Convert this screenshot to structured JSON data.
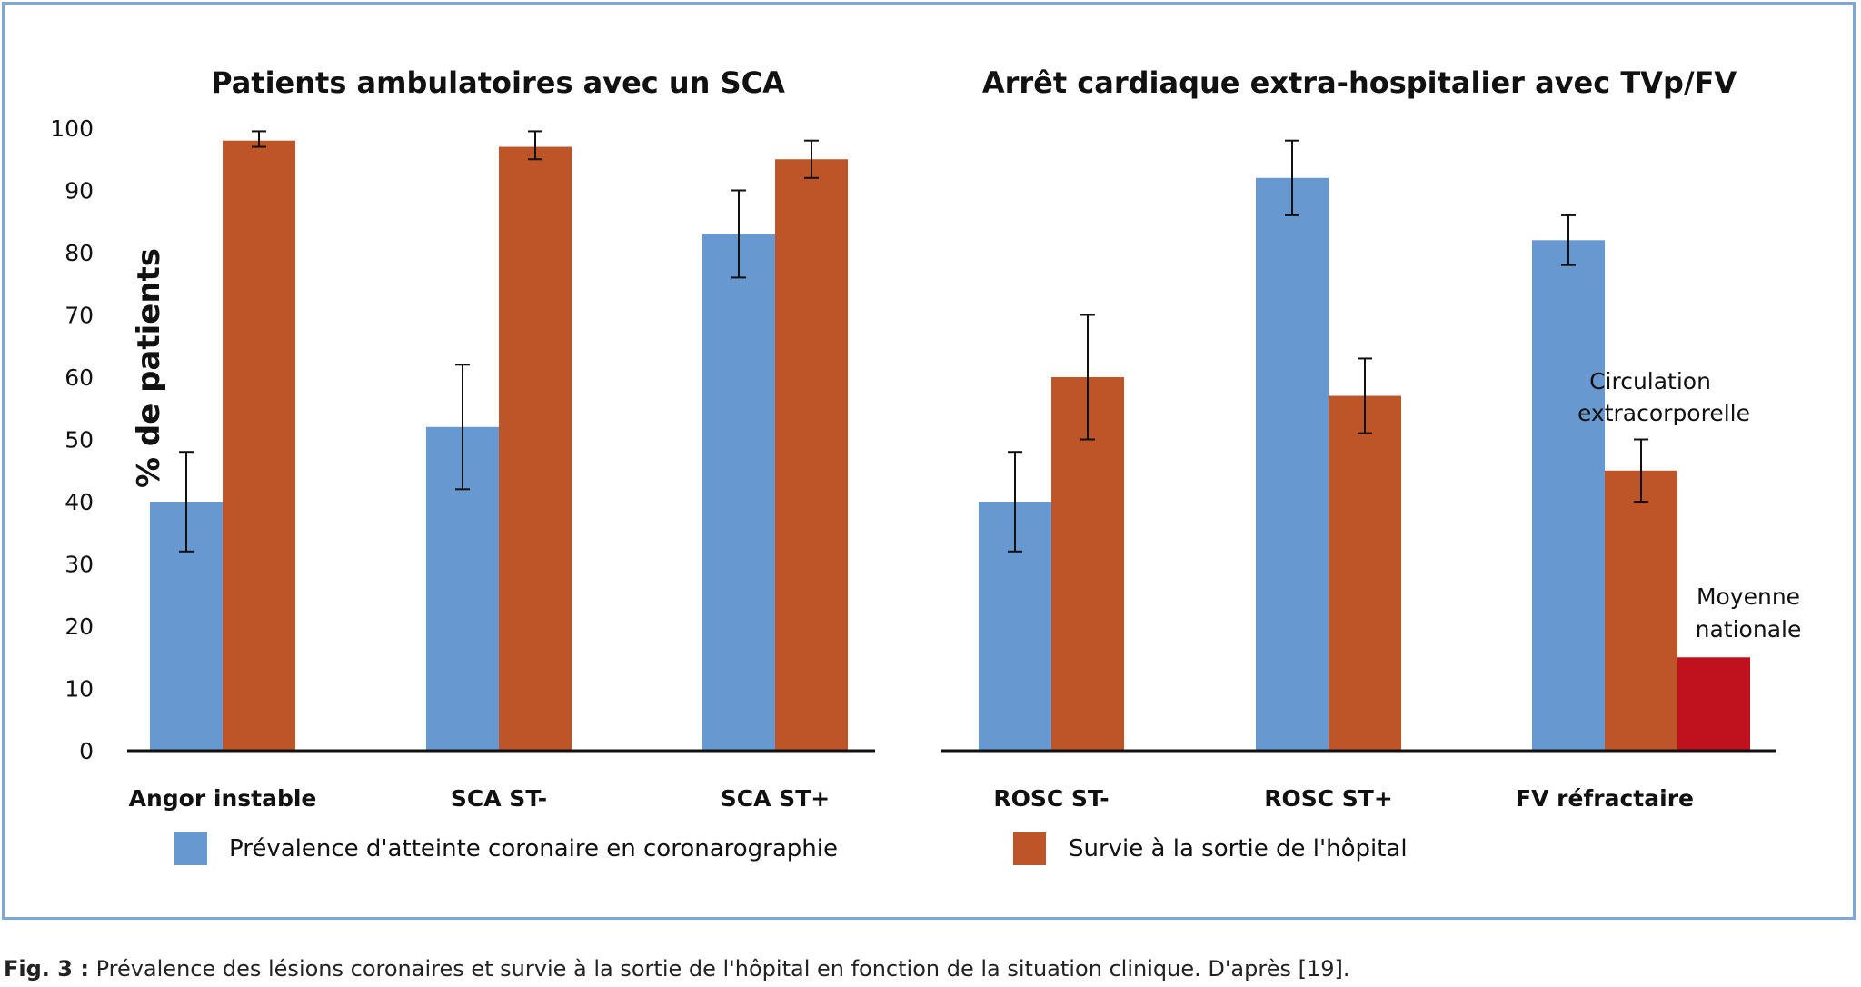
{
  "chart_data": {
    "type": "bar",
    "ylabel": "% de patients",
    "ylim": [
      0,
      100
    ],
    "y_ticks": [
      0,
      10,
      20,
      30,
      40,
      50,
      60,
      70,
      80,
      90,
      100
    ],
    "legend": {
      "placement": "bottom",
      "items": [
        {
          "label": "Prévalence d'atteinte coronaire en coronarographie",
          "color": "#6898D0"
        },
        {
          "label": "Survie à la sortie de l'hôpital",
          "color": "#BE5529"
        }
      ]
    },
    "panels": [
      {
        "title": "Patients ambulatoires avec un SCA",
        "categories": [
          "Angor instable",
          "SCA ST-",
          "SCA ST+"
        ],
        "series": [
          {
            "name": "Prévalence d'atteinte coronaire en coronarographie",
            "color": "#6898D0",
            "values": [
              40,
              52,
              83
            ],
            "error_low": [
              32,
              42,
              76
            ],
            "error_high": [
              48,
              62,
              90
            ]
          },
          {
            "name": "Survie à la sortie de l'hôpital",
            "color": "#BE5529",
            "values": [
              98,
              97,
              95
            ],
            "error_low": [
              97,
              95,
              92
            ],
            "error_high": [
              99.5,
              99.5,
              98
            ]
          }
        ]
      },
      {
        "title": "Arrêt cardiaque extra-hospitalier avec TVp/FV",
        "categories": [
          "ROSC ST-",
          "ROSC ST+",
          "FV réfractaire"
        ],
        "series": [
          {
            "name": "Prévalence d'atteinte coronaire en coronarographie",
            "color": "#6898D0",
            "values": [
              40,
              92,
              82
            ],
            "error_low": [
              32,
              86,
              78
            ],
            "error_high": [
              48,
              98,
              86
            ]
          },
          {
            "name": "Survie à la sortie de l'hôpital",
            "color": "#BE5529",
            "values": [
              60,
              57,
              45
            ],
            "error_low": [
              50,
              51,
              40
            ],
            "error_high": [
              70,
              63,
              50
            ]
          }
        ],
        "extra_bar": {
          "category": "FV réfractaire",
          "value": 15,
          "color": "#C0111E",
          "label_lines": [
            "Moyenne",
            "nationale"
          ]
        },
        "annotation": {
          "category": "FV réfractaire",
          "label_lines": [
            "Circulation",
            "extracorporelle"
          ]
        }
      }
    ]
  },
  "caption": {
    "label": "Fig. 3 :",
    "text": " Prévalence des lésions coronaires et survie à la sortie de l'hôpital en fonction de la situation clinique. D'après [19]."
  }
}
